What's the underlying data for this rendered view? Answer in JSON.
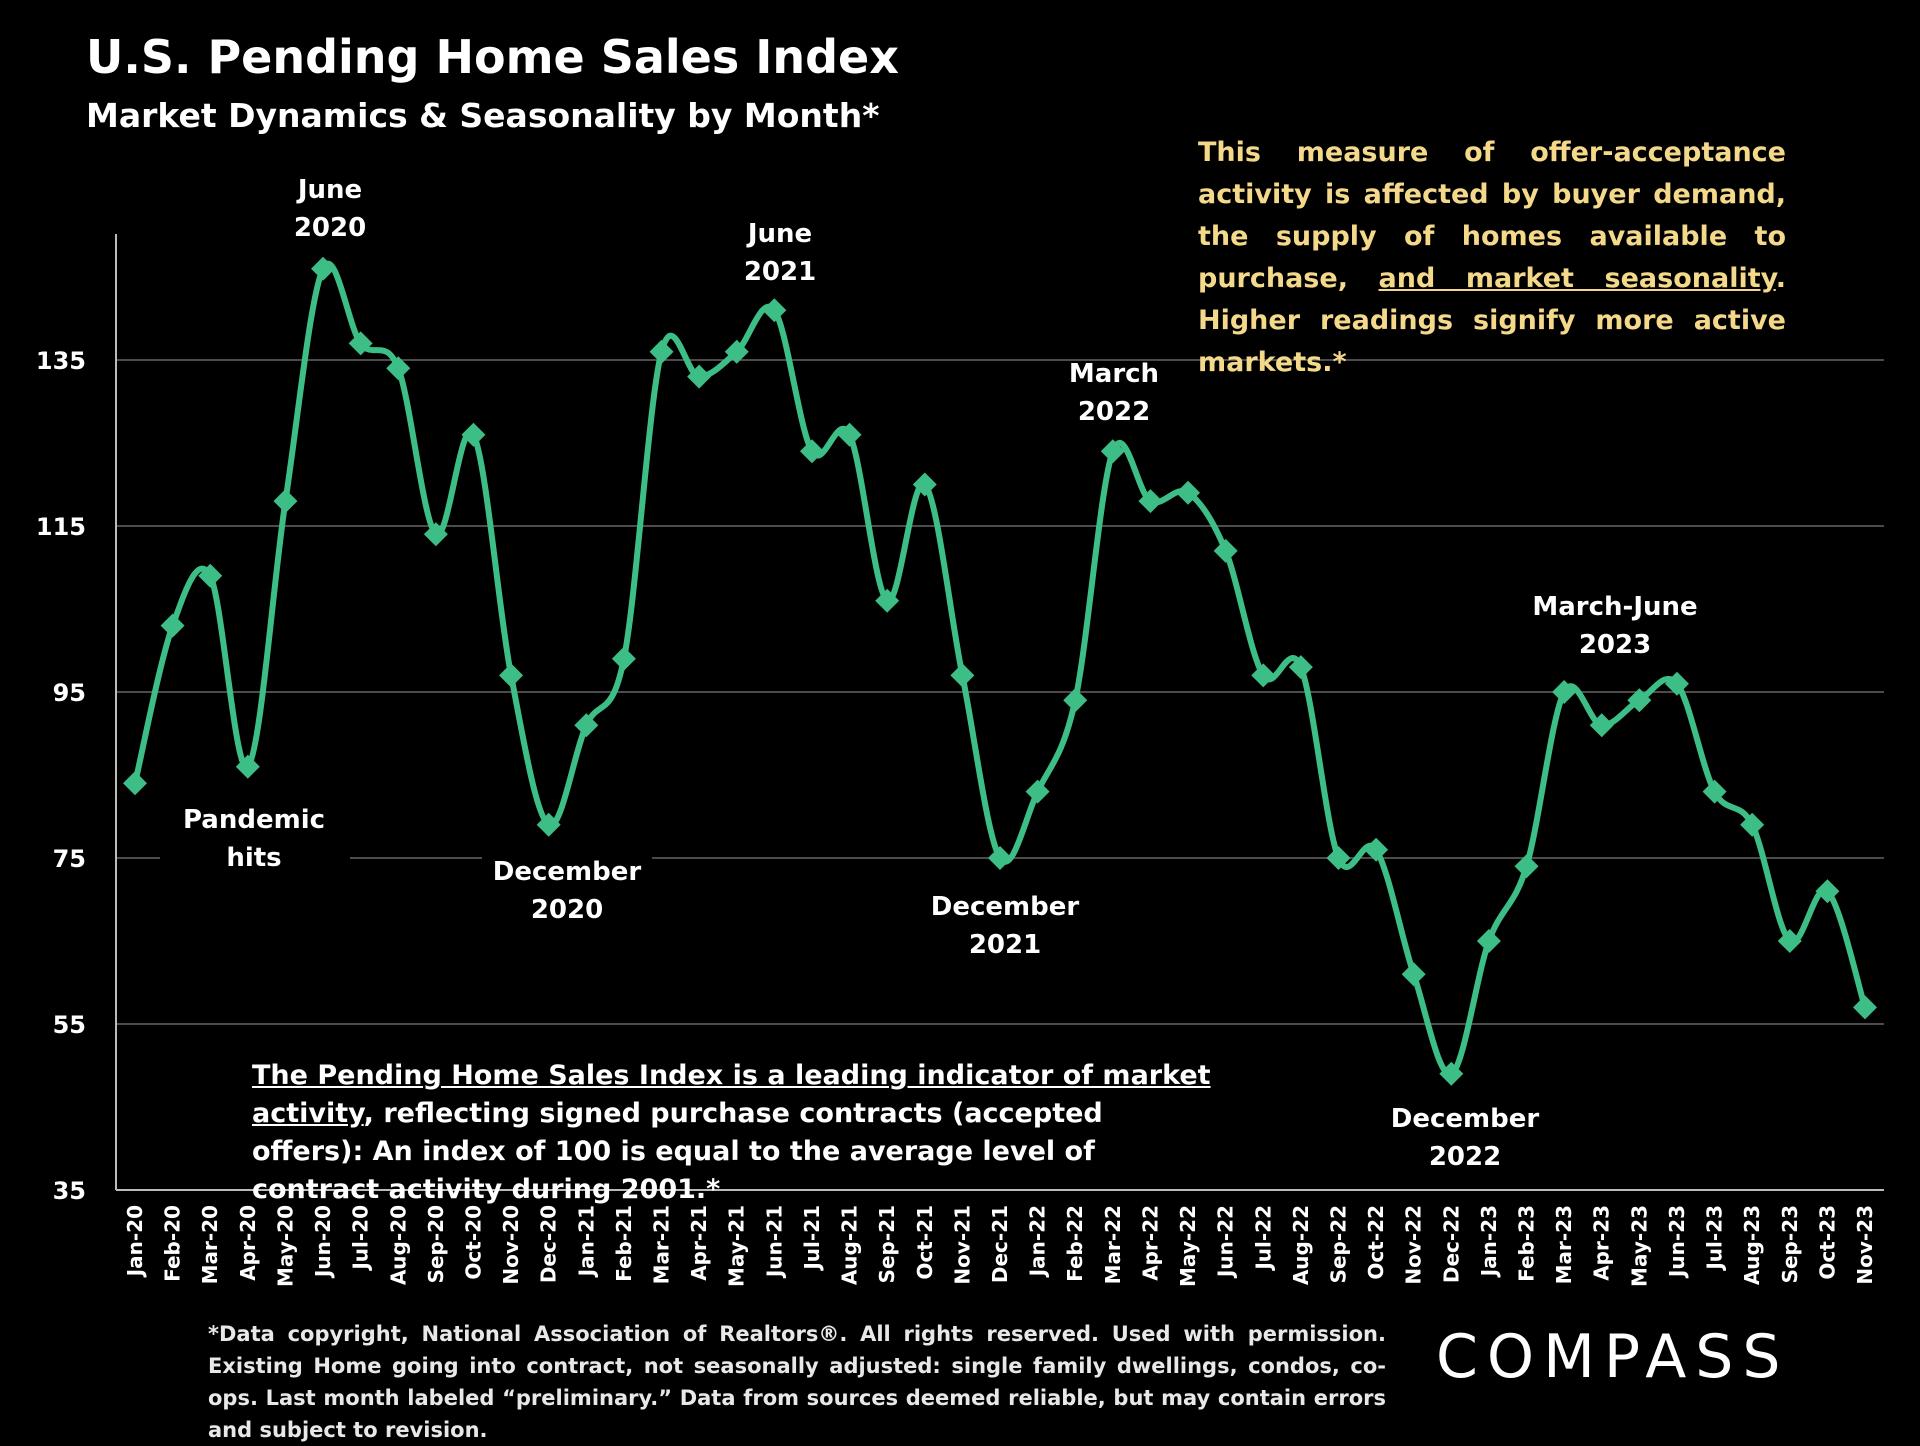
{
  "title": "U.S. Pending Home Sales Index",
  "subtitle": "Market Dynamics & Seasonality by Month*",
  "note": {
    "part1": "This measure of offer-acceptance activity is affected by buyer demand, the supply of homes available to purchase, ",
    "underlined": "and market seasonality",
    "part2": ". Higher readings signify more active markets.*"
  },
  "definition": {
    "underlined": "The Pending Home Sales Index is a leading indicator of market activity",
    "rest": ", reflecting signed purchase contracts (accepted offers): An index of 100 is equal to the average level of contract activity during 2001.*"
  },
  "footnote": "*Data copyright, National Association of Realtors®. All rights reserved. Used with permission. Existing Home going into contract, not seasonally adjusted:  single family dwellings, condos, co-ops. Last month labeled “preliminary.” Data from sources deemed reliable, but may contain errors and subject to revision.",
  "logo": "COMPASS",
  "colors": {
    "line": "#3dbe86",
    "background": "#000000",
    "note": "#f5d98a",
    "grid": "#666666"
  },
  "chart_data": {
    "type": "line",
    "title": "U.S. Pending Home Sales Index",
    "xlabel": "",
    "ylabel": "",
    "ylim": [
      35,
      150
    ],
    "yticks": [
      35,
      55,
      75,
      95,
      115,
      135
    ],
    "grid": true,
    "categories": [
      "Jan-20",
      "Feb-20",
      "Mar-20",
      "Apr-20",
      "May-20",
      "Jun-20",
      "Jul-20",
      "Aug-20",
      "Sep-20",
      "Oct-20",
      "Nov-20",
      "Dec-20",
      "Jan-21",
      "Feb-21",
      "Mar-21",
      "Apr-21",
      "May-21",
      "Jun-21",
      "Jul-21",
      "Aug-21",
      "Sep-21",
      "Oct-21",
      "Nov-21",
      "Dec-21",
      "Jan-22",
      "Feb-22",
      "Mar-22",
      "Apr-22",
      "May-22",
      "Jun-22",
      "Jul-22",
      "Aug-22",
      "Sep-22",
      "Oct-22",
      "Nov-22",
      "Dec-22",
      "Jan-23",
      "Feb-23",
      "Mar-23",
      "Apr-23",
      "May-23",
      "Jun-23",
      "Jul-23",
      "Aug-23",
      "Sep-23",
      "Oct-23",
      "Nov-23"
    ],
    "series": [
      {
        "name": "Pending Home Sales Index",
        "values": [
          84,
          103,
          109,
          86,
          118,
          146,
          137,
          134,
          114,
          126,
          97,
          79,
          91,
          99,
          136,
          133,
          136,
          141,
          124,
          126,
          106,
          120,
          97,
          75,
          83,
          94,
          124,
          118,
          119,
          112,
          97,
          98,
          75,
          76,
          61,
          49,
          65,
          74,
          95,
          91,
          94,
          96,
          83,
          79,
          65,
          71,
          57
        ]
      }
    ],
    "annotations": [
      {
        "lines": [
          "June",
          "2020"
        ],
        "index": 5
      },
      {
        "lines": [
          "Pandemic",
          "hits"
        ],
        "index": 3
      },
      {
        "lines": [
          "December",
          "2020"
        ],
        "index": 11
      },
      {
        "lines": [
          "June",
          "2021"
        ],
        "index": 17
      },
      {
        "lines": [
          "December",
          "2021"
        ],
        "index": 23
      },
      {
        "lines": [
          "March",
          "2022"
        ],
        "index": 26
      },
      {
        "lines": [
          "December",
          "2022"
        ],
        "index": 35
      },
      {
        "lines": [
          "March-June",
          "2023"
        ],
        "index": 40
      }
    ]
  }
}
